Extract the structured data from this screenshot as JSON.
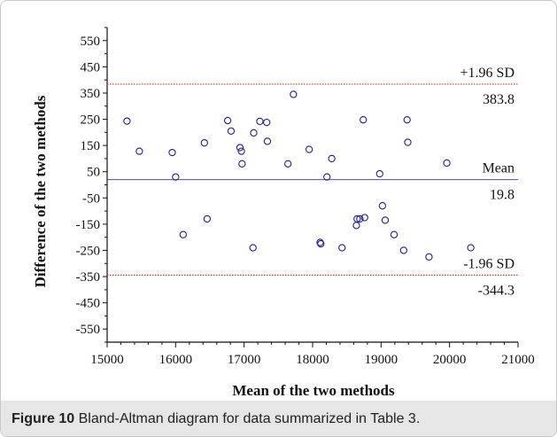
{
  "caption": {
    "prefix": "Figure 10",
    "text": "Bland-Altman diagram for data summarized in Table 3."
  },
  "chart_data": {
    "type": "scatter",
    "title": "",
    "xlabel": "Mean of the two methods",
    "ylabel": "Difference of the two methods",
    "xlim": [
      15000,
      21000
    ],
    "ylim": [
      -600,
      600
    ],
    "x_ticks": [
      15000,
      16000,
      17000,
      18000,
      19000,
      20000,
      21000
    ],
    "y_ticks": [
      550,
      450,
      350,
      250,
      150,
      50,
      -50,
      -150,
      -250,
      -350,
      -450,
      -550
    ],
    "grid": false,
    "colors": {
      "points": "#1f1f8f",
      "mean_line": "#4b4baa",
      "sd_lines": "#c0392b"
    },
    "reference_lines": [
      {
        "name": "upper_limit",
        "label": "+1.96 SD",
        "value": 383.8,
        "value_label": "383.8",
        "style": "dotted"
      },
      {
        "name": "mean",
        "label": "Mean",
        "value": 19.8,
        "value_label": "19.8",
        "style": "solid"
      },
      {
        "name": "lower_limit",
        "label": "-1.96 SD",
        "value": -344.3,
        "value_label": "-344.3",
        "style": "dotted"
      }
    ],
    "points": [
      {
        "x": 15290,
        "y": 243
      },
      {
        "x": 15470,
        "y": 128
      },
      {
        "x": 15950,
        "y": 123
      },
      {
        "x": 16000,
        "y": 30
      },
      {
        "x": 16110,
        "y": -190
      },
      {
        "x": 16420,
        "y": 160
      },
      {
        "x": 16460,
        "y": -130
      },
      {
        "x": 16760,
        "y": 245
      },
      {
        "x": 16810,
        "y": 205
      },
      {
        "x": 16940,
        "y": 142
      },
      {
        "x": 16960,
        "y": 128
      },
      {
        "x": 16970,
        "y": 80
      },
      {
        "x": 17130,
        "y": -240
      },
      {
        "x": 17140,
        "y": 198
      },
      {
        "x": 17230,
        "y": 242
      },
      {
        "x": 17330,
        "y": 238
      },
      {
        "x": 17340,
        "y": 166
      },
      {
        "x": 17640,
        "y": 80
      },
      {
        "x": 17720,
        "y": 345
      },
      {
        "x": 17950,
        "y": 135
      },
      {
        "x": 18110,
        "y": -220
      },
      {
        "x": 18120,
        "y": -225
      },
      {
        "x": 18210,
        "y": 30
      },
      {
        "x": 18280,
        "y": 100
      },
      {
        "x": 18430,
        "y": -240
      },
      {
        "x": 18640,
        "y": -155
      },
      {
        "x": 18650,
        "y": -130
      },
      {
        "x": 18690,
        "y": -130
      },
      {
        "x": 18740,
        "y": 248
      },
      {
        "x": 18760,
        "y": -125
      },
      {
        "x": 18980,
        "y": 42
      },
      {
        "x": 19020,
        "y": -80
      },
      {
        "x": 19060,
        "y": -135
      },
      {
        "x": 19190,
        "y": -190
      },
      {
        "x": 19330,
        "y": -250
      },
      {
        "x": 19380,
        "y": 248
      },
      {
        "x": 19390,
        "y": 162
      },
      {
        "x": 19700,
        "y": -275
      },
      {
        "x": 19960,
        "y": 83
      },
      {
        "x": 20310,
        "y": -240
      }
    ]
  }
}
